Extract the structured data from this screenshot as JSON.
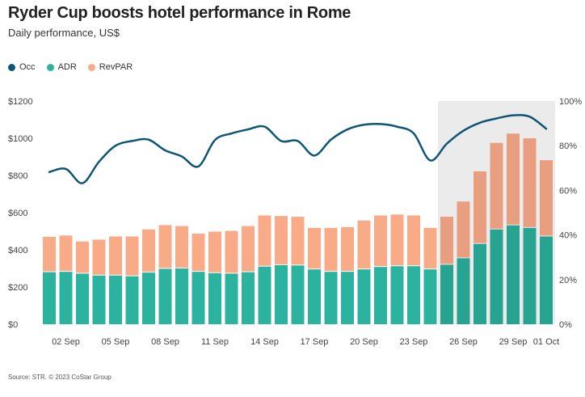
{
  "title": "Ryder Cup boosts hotel performance in Rome",
  "subtitle": "Daily performance, US$",
  "source": "Source: STR. © 2023 CoStar Group",
  "colors": {
    "occ": "#0e5675",
    "adr": "#2bb3a0",
    "revpar": "#f9ab88",
    "adr_hl": "#27a391",
    "revpar_hl": "#e99e80",
    "highlight_bg": "#ebebeb"
  },
  "chart_data": {
    "type": "bar+line",
    "title": "Ryder Cup boosts hotel performance in Rome",
    "subtitle": "Daily performance, US$",
    "legend": [
      "Occ",
      "ADR",
      "RevPAR"
    ],
    "legend_position": "top-left",
    "stacked": true,
    "x": [
      "01 Sep",
      "02 Sep",
      "03 Sep",
      "04 Sep",
      "05 Sep",
      "06 Sep",
      "07 Sep",
      "08 Sep",
      "09 Sep",
      "10 Sep",
      "11 Sep",
      "12 Sep",
      "13 Sep",
      "14 Sep",
      "15 Sep",
      "16 Sep",
      "17 Sep",
      "18 Sep",
      "19 Sep",
      "20 Sep",
      "21 Sep",
      "22 Sep",
      "23 Sep",
      "24 Sep",
      "25 Sep",
      "26 Sep",
      "27 Sep",
      "28 Sep",
      "29 Sep",
      "30 Sep",
      "01 Oct"
    ],
    "x_tick_labels": [
      "02 Sep",
      "05 Sep",
      "08 Sep",
      "11 Sep",
      "14 Sep",
      "17 Sep",
      "20 Sep",
      "23 Sep",
      "26 Sep",
      "29 Sep",
      "01 Oct"
    ],
    "series": [
      {
        "name": "ADR",
        "axis": "left",
        "type": "bar",
        "values": [
          280,
          282,
          272,
          262,
          262,
          258,
          278,
          298,
          300,
          282,
          275,
          272,
          280,
          310,
          318,
          316,
          295,
          282,
          282,
          295,
          308,
          312,
          312,
          295,
          320,
          355,
          432,
          510,
          532,
          518,
          472
        ]
      },
      {
        "name": "RevPAR",
        "axis": "left",
        "type": "bar",
        "values": [
          190,
          195,
          173,
          193,
          210,
          214,
          232,
          235,
          228,
          205,
          223,
          230,
          248,
          275,
          264,
          262,
          223,
          236,
          240,
          263,
          277,
          278,
          273,
          223,
          258,
          305,
          390,
          465,
          493,
          482,
          410
        ]
      },
      {
        "name": "Occ",
        "axis": "right",
        "type": "line",
        "values": [
          68.2,
          69.6,
          63.2,
          72.8,
          80.0,
          82.1,
          82.7,
          77.9,
          75.2,
          70.7,
          82.5,
          85.5,
          87.3,
          88.5,
          82.1,
          82.1,
          75.6,
          82.7,
          87.3,
          89.4,
          89.7,
          88.5,
          85.5,
          73.4,
          80.9,
          86.7,
          90.3,
          92.2,
          93.6,
          93.0,
          87.6
        ]
      }
    ],
    "y_left": {
      "ticks": [
        "$0",
        "$200",
        "$400",
        "$600",
        "$800",
        "$1000",
        "$1200"
      ],
      "range": [
        0,
        1200
      ]
    },
    "y_right": {
      "ticks": [
        "0%",
        "20%",
        "40%",
        "60%",
        "80%",
        "100%"
      ],
      "range": [
        0,
        100
      ]
    },
    "highlight": {
      "from": "25 Sep",
      "to": "01 Oct"
    },
    "grid": false
  }
}
